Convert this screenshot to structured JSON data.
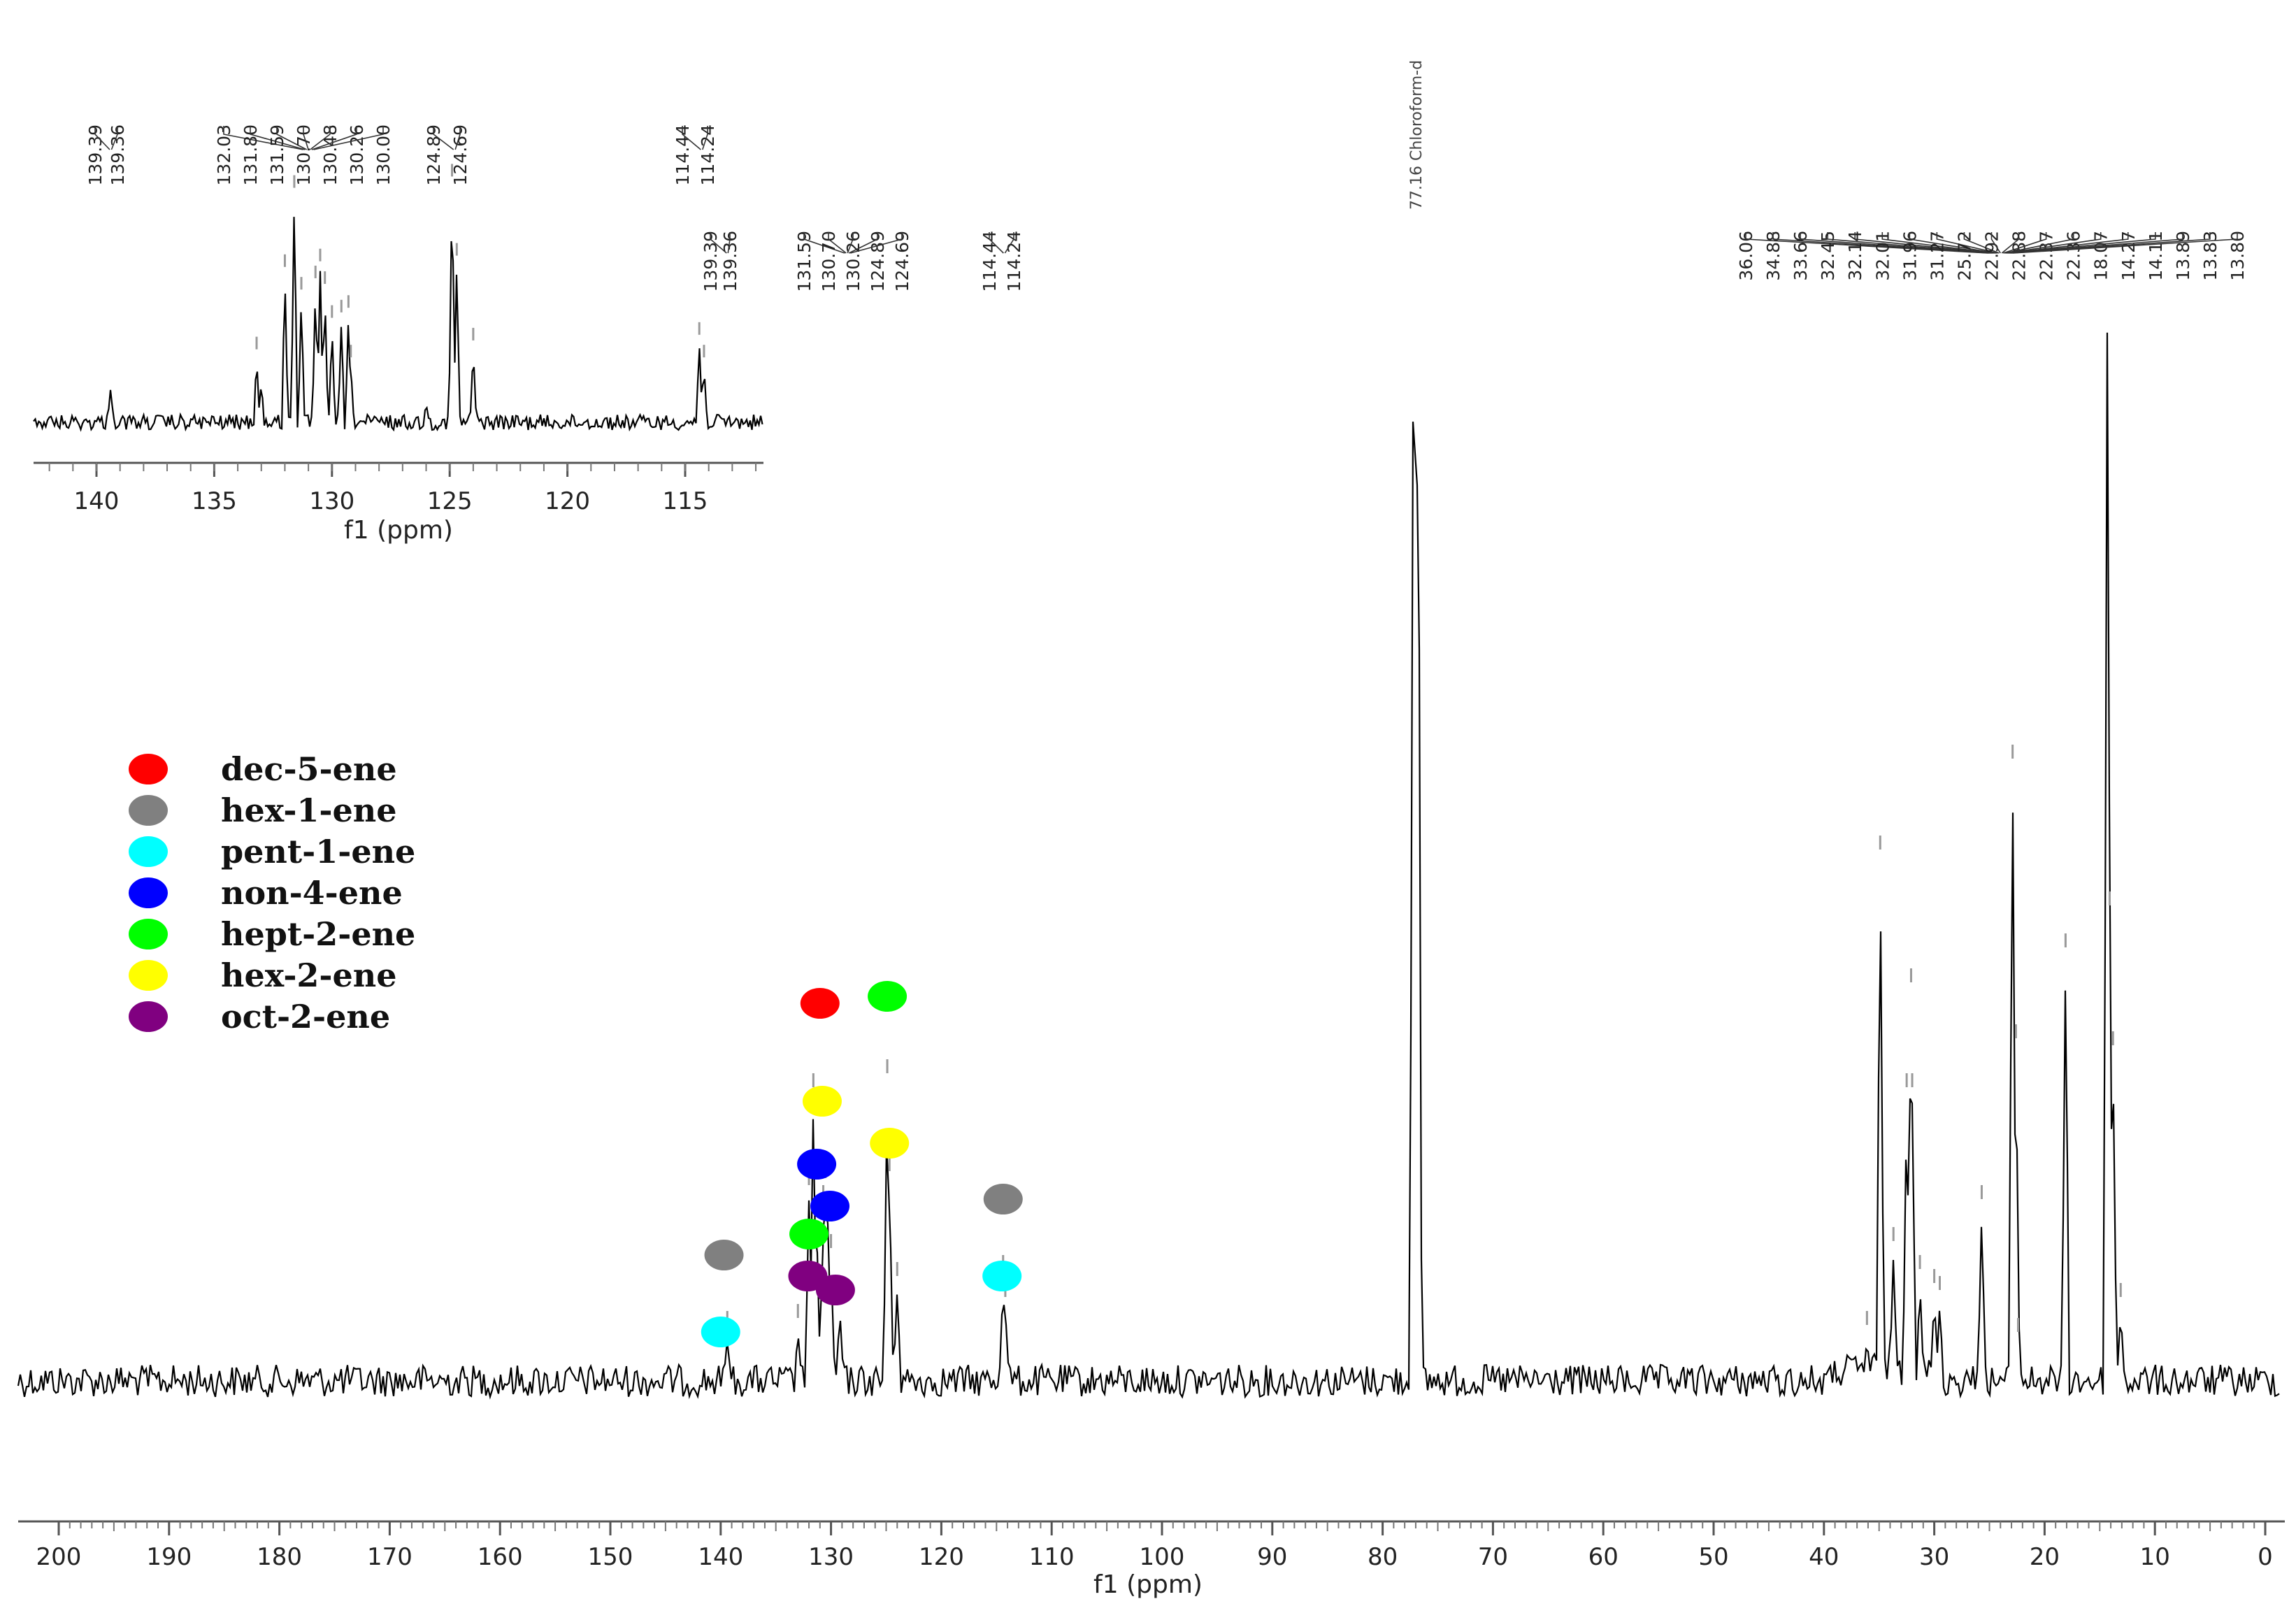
{
  "chart_data": {
    "type": "line",
    "main": {
      "xlabel": "f1 (ppm)",
      "xlim": [
        200,
        0
      ],
      "x_ticks": [
        "200",
        "190",
        "180",
        "170",
        "160",
        "150",
        "140",
        "130",
        "120",
        "110",
        "100",
        "90",
        "80",
        "70",
        "60",
        "50",
        "40",
        "30",
        "20",
        "10",
        "0"
      ],
      "peaks": [
        {
          "x": 139.4,
          "h": 0.06
        },
        {
          "x": 133.0,
          "h": 0.07
        },
        {
          "x": 132.0,
          "h": 0.26
        },
        {
          "x": 131.6,
          "h": 0.4
        },
        {
          "x": 131.3,
          "h": 0.22
        },
        {
          "x": 130.7,
          "h": 0.24
        },
        {
          "x": 130.5,
          "h": 0.27
        },
        {
          "x": 130.3,
          "h": 0.23
        },
        {
          "x": 130.0,
          "h": 0.17
        },
        {
          "x": 129.2,
          "h": 0.1
        },
        {
          "x": 124.9,
          "h": 0.42
        },
        {
          "x": 124.7,
          "h": 0.28
        },
        {
          "x": 124.0,
          "h": 0.13
        },
        {
          "x": 114.4,
          "h": 0.14
        },
        {
          "x": 114.2,
          "h": 0.1
        },
        {
          "x": 77.2,
          "h": 1.6
        },
        {
          "x": 77.0,
          "h": 1.6
        },
        {
          "x": 76.8,
          "h": 1.6
        },
        {
          "x": 36.1,
          "h": 0.06
        },
        {
          "x": 34.9,
          "h": 0.74
        },
        {
          "x": 33.7,
          "h": 0.18
        },
        {
          "x": 32.5,
          "h": 0.4
        },
        {
          "x": 32.1,
          "h": 0.55
        },
        {
          "x": 32.0,
          "h": 0.4
        },
        {
          "x": 31.3,
          "h": 0.14
        },
        {
          "x": 30.0,
          "h": 0.12
        },
        {
          "x": 29.5,
          "h": 0.11
        },
        {
          "x": 25.7,
          "h": 0.24
        },
        {
          "x": 22.9,
          "h": 0.87
        },
        {
          "x": 22.6,
          "h": 0.47
        },
        {
          "x": 22.4,
          "h": 0.05
        },
        {
          "x": 18.1,
          "h": 0.6
        },
        {
          "x": 14.3,
          "h": 1.6
        },
        {
          "x": 14.1,
          "h": 0.66
        },
        {
          "x": 13.8,
          "h": 0.46
        },
        {
          "x": 13.1,
          "h": 0.1
        }
      ],
      "solvent_label": "77.16 Chloroform-d",
      "peak_label_groups": [
        {
          "labels": [
            "139.39",
            "139.36"
          ],
          "at": 139.4
        },
        {
          "labels": [
            "131.59",
            "130.70",
            "130.26",
            "124.89",
            "124.69"
          ],
          "at": 128.5
        },
        {
          "labels": [
            "114.44",
            "114.24"
          ],
          "at": 114.3
        },
        {
          "labels": [
            "36.06",
            "34.88",
            "33.66",
            "32.45",
            "32.14",
            "32.01",
            "31.96",
            "31.27",
            "25.72",
            "22.92",
            "22.88",
            "22.37",
            "22.36",
            "18.07",
            "14.27",
            "14.11",
            "13.89",
            "13.83",
            "13.80"
          ],
          "at": 24.0
        }
      ]
    },
    "inset": {
      "xlabel": "f1 (ppm)",
      "xlim": [
        142,
        112
      ],
      "x_ticks": [
        "140",
        "135",
        "130",
        "125",
        "120",
        "115"
      ],
      "peak_label_groups": [
        {
          "labels": [
            "139.39",
            "139.36"
          ],
          "at": 139.4
        },
        {
          "labels": [
            "132.03",
            "131.80",
            "131.59",
            "130.70",
            "130.48",
            "130.26",
            "130.00"
          ],
          "at": 131.0
        },
        {
          "labels": [
            "124.89",
            "124.69"
          ],
          "at": 124.8
        },
        {
          "labels": [
            "114.44",
            "114.24"
          ],
          "at": 114.3
        }
      ]
    },
    "legend": {
      "placement": "left",
      "entries": [
        {
          "name": "dec-5-ene",
          "color": "#ff0000"
        },
        {
          "name": "hex-1-ene",
          "color": "#808080"
        },
        {
          "name": "pent-1-ene",
          "color": "#00ffff"
        },
        {
          "name": "non-4-ene",
          "color": "#0000ff"
        },
        {
          "name": "hept-2-ene",
          "color": "#00ff00"
        },
        {
          "name": "hex-2-ene",
          "color": "#ffff00"
        },
        {
          "name": "oct-2-ene",
          "color": "#800080"
        }
      ]
    },
    "peak_markers": [
      {
        "compound": "dec-5-ene",
        "x": 131.0,
        "level": 0.54
      },
      {
        "compound": "hept-2-ene",
        "x": 124.9,
        "level": 0.55
      },
      {
        "compound": "hex-2-ene",
        "x": 130.8,
        "level": 0.4
      },
      {
        "compound": "hex-2-ene",
        "x": 124.7,
        "level": 0.34
      },
      {
        "compound": "non-4-ene",
        "x": 131.3,
        "level": 0.31
      },
      {
        "compound": "non-4-ene",
        "x": 130.1,
        "level": 0.25
      },
      {
        "compound": "hept-2-ene",
        "x": 132.0,
        "level": 0.21
      },
      {
        "compound": "oct-2-ene",
        "x": 132.1,
        "level": 0.15
      },
      {
        "compound": "oct-2-ene",
        "x": 129.6,
        "level": 0.13
      },
      {
        "compound": "hex-1-ene",
        "x": 139.7,
        "level": 0.18
      },
      {
        "compound": "pent-1-ene",
        "x": 140.0,
        "level": 0.07
      },
      {
        "compound": "hex-1-ene",
        "x": 114.4,
        "level": 0.26
      },
      {
        "compound": "pent-1-ene",
        "x": 114.5,
        "level": 0.15
      }
    ]
  }
}
